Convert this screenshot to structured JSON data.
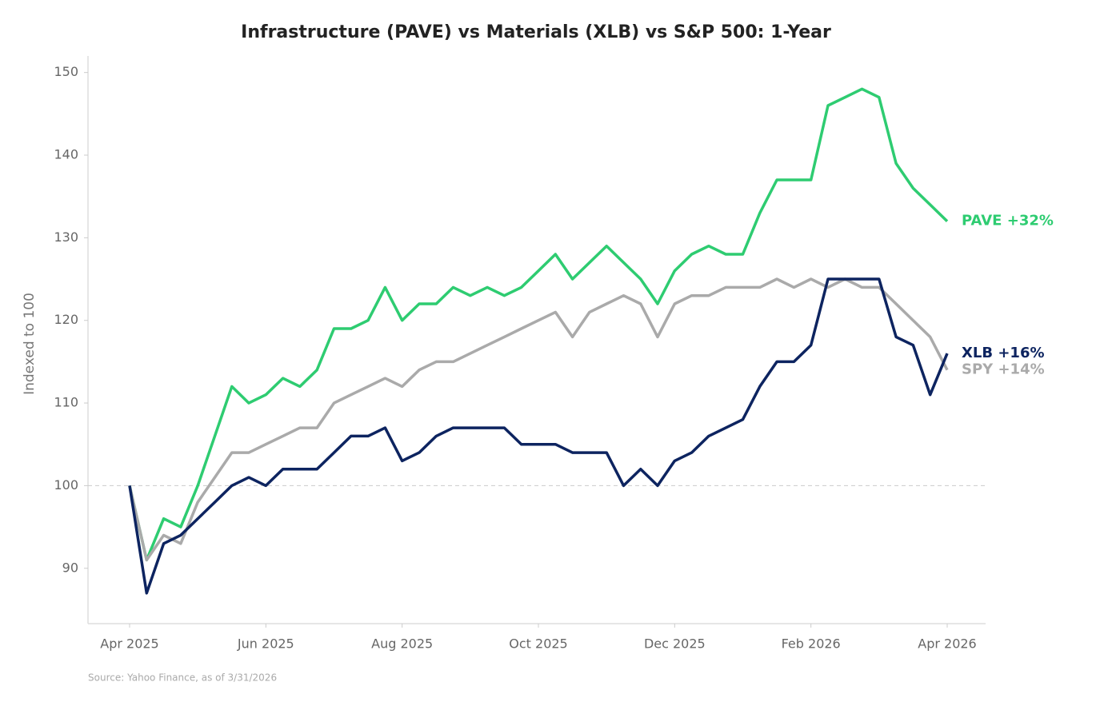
{
  "chart_data": {
    "type": "line",
    "title": "Infrastructure (PAVE) vs Materials (XLB) vs S&P 500: 1-Year",
    "y_label": "Indexed to 100",
    "source": "Source: Yahoo Finance, as of 3/31/2026",
    "categories": [
      "Apr 2025",
      null,
      null,
      null,
      null,
      null,
      null,
      null,
      "Jun 2025",
      null,
      null,
      null,
      null,
      null,
      null,
      null,
      "Aug 2025",
      null,
      null,
      null,
      null,
      null,
      null,
      null,
      "Oct 2025",
      null,
      null,
      null,
      null,
      null,
      null,
      null,
      "Dec 2025",
      null,
      null,
      null,
      null,
      null,
      null,
      null,
      "Feb 2026",
      null,
      null,
      null,
      null,
      null,
      null,
      null,
      "Apr 2026"
    ],
    "series": [
      {
        "name": "PAVE",
        "label": "PAVE +32%",
        "color": "#2ecc71",
        "values": [
          100,
          91,
          96,
          95,
          100,
          106,
          112,
          110,
          111,
          113,
          112,
          114,
          119,
          119,
          120,
          124,
          120,
          122,
          122,
          124,
          123,
          124,
          123,
          124,
          126,
          128,
          125,
          127,
          129,
          127,
          125,
          122,
          126,
          128,
          129,
          128,
          128,
          133,
          137,
          137,
          137,
          146,
          147,
          148,
          147,
          139,
          136,
          134,
          132
        ]
      },
      {
        "name": "SPY",
        "label": "SPY +14%",
        "color": "#aaaaaa",
        "values": [
          100,
          91,
          94,
          93,
          98,
          101,
          104,
          104,
          105,
          106,
          107,
          107,
          110,
          111,
          112,
          113,
          112,
          114,
          115,
          115,
          116,
          117,
          118,
          119,
          120,
          121,
          118,
          121,
          122,
          123,
          122,
          118,
          122,
          123,
          123,
          124,
          124,
          124,
          125,
          124,
          125,
          124,
          125,
          124,
          124,
          122,
          120,
          118,
          114
        ]
      },
      {
        "name": "XLB",
        "label": "XLB +16%",
        "color": "#0d2460",
        "values": [
          100,
          87,
          93,
          94,
          96,
          98,
          100,
          101,
          100,
          102,
          102,
          102,
          104,
          106,
          106,
          107,
          103,
          104,
          106,
          107,
          107,
          107,
          107,
          105,
          105,
          105,
          104,
          104,
          104,
          100,
          102,
          100,
          103,
          104,
          106,
          107,
          108,
          112,
          115,
          115,
          117,
          125,
          125,
          125,
          125,
          118,
          117,
          111,
          116
        ]
      }
    ],
    "reference_line": 100,
    "ylim": [
      83.3,
      152
    ],
    "yticks": [
      90,
      100,
      110,
      120,
      130,
      140,
      150
    ]
  }
}
